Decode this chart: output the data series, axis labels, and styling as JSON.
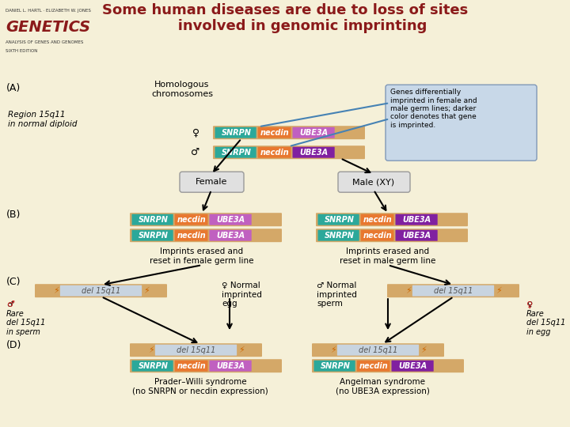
{
  "title": "Some human diseases are due to loss of sites\n       involved in genomic imprinting",
  "bg_header": "#f5f0d8",
  "bg_main": "#2a4a6b",
  "bg_inner": "#e8e8e8",
  "snrpn_female_color": "#2ca89a",
  "snrpn_male_color": "#2ca89a",
  "necdin_female_color": "#e87830",
  "necdin_male_color": "#e87830",
  "ube3a_female_color": "#c060c0",
  "ube3a_male_dark_color": "#8020a0",
  "chromosome_color": "#d4a868",
  "del_color": "#c8d4e0",
  "annotation_box_color": "#c8d8e8",
  "female_label": "Female",
  "male_label": "Male (XY)",
  "section_A_left": "Region 15q11\nin normal diploid",
  "section_A_chrom": "Homologous\nchromosomes",
  "annotation_text": "Genes differentially\nimprinted in female and\nmale germ lines; darker\ncolor denotes that gene\nis imprinted.",
  "female_germ": "Imprints erased and\nreset in female germ line",
  "male_germ": "Imprints erased and\nreset in male germ line",
  "rare_sperm": "♂\nRare\ndel 15q11\nin sperm",
  "rare_egg": "♀\nRare\ndel 15q11\nin egg",
  "normal_egg": "♀ Normal\nimprinted\negg",
  "normal_sperm": "♂ Normal\nimprinted\nsperm",
  "del_label": "del 15q11",
  "prader_willi": "Prader–Willi syndrome\n(no SNRPN or necdin expression)",
  "angelman": "Angelman syndrome\n(no UBE3A expression)"
}
